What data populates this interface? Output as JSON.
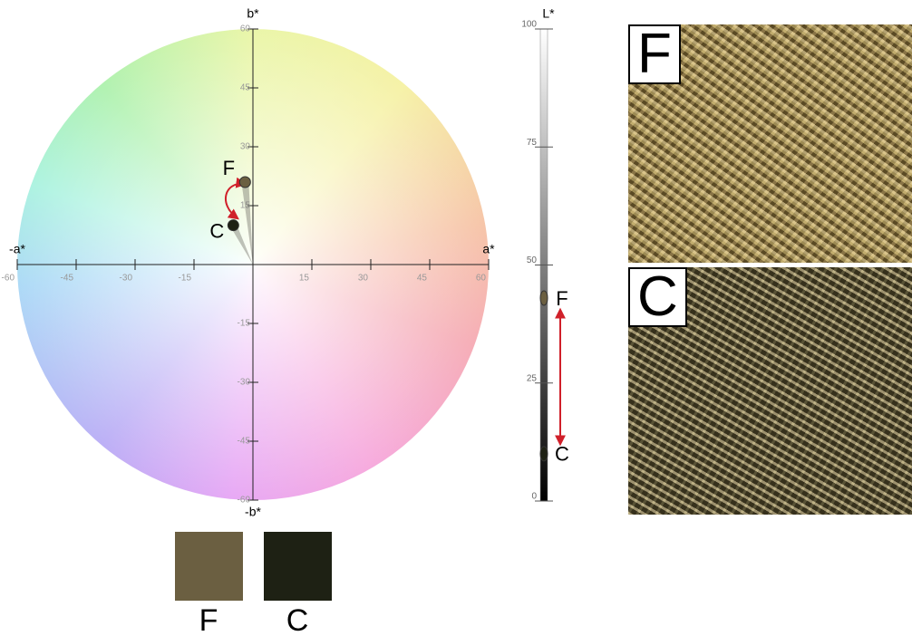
{
  "chart_data": [
    {
      "type": "scatter",
      "x_label": "a*",
      "x_label_neg": "-a*",
      "y_label": "b*",
      "y_label_neg": "-b*",
      "xlim": [
        -60,
        60
      ],
      "ylim": [
        -60,
        60
      ],
      "xticks": [
        -60,
        -45,
        -30,
        -15,
        15,
        30,
        45,
        60
      ],
      "yticks": [
        -60,
        -45,
        -30,
        -15,
        15,
        30,
        45,
        60
      ],
      "series": [
        {
          "name": "F",
          "color": "#6b5f41",
          "x": [
            -2
          ],
          "values": [
            21
          ]
        },
        {
          "name": "C",
          "color": "#1e2114",
          "x": [
            -5
          ],
          "values": [
            10
          ]
        }
      ]
    },
    {
      "type": "strip",
      "y_label": "L*",
      "ylim": [
        0,
        100
      ],
      "yticks": [
        0,
        25,
        50,
        75,
        100
      ],
      "series": [
        {
          "name": "F",
          "color": "#6b5f41",
          "values": [
            43
          ]
        },
        {
          "name": "C",
          "color": "#1e2114",
          "values": [
            10
          ]
        }
      ]
    }
  ],
  "photos": [
    {
      "label": "F"
    },
    {
      "label": "C"
    }
  ]
}
